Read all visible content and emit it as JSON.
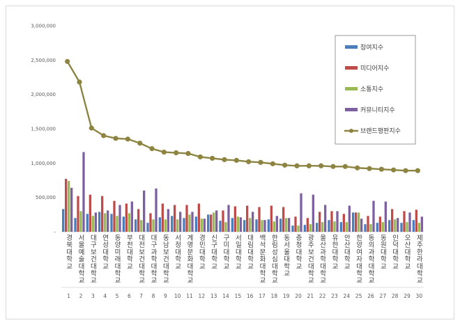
{
  "chart_data": {
    "type": "bar",
    "title": "",
    "xlabel": "",
    "ylabel": "",
    "ylim": [
      0,
      3000000
    ],
    "yticks": [
      "-",
      "500,000",
      "1,000,000",
      "1,500,000",
      "2,000,000",
      "2,500,000",
      "3,000,000"
    ],
    "grid": false,
    "legend_position": "top-right",
    "ranks": [
      "1",
      "2",
      "3",
      "4",
      "5",
      "6",
      "7",
      "8",
      "9",
      "10",
      "11",
      "12",
      "13",
      "14",
      "15",
      "16",
      "17",
      "18",
      "19",
      "20",
      "21",
      "22",
      "23",
      "24",
      "25",
      "26",
      "27",
      "28",
      "29",
      "30"
    ],
    "categories": [
      "경북대학교",
      "서울예술대학교",
      "대구보건대학교",
      "연성대학교",
      "동양미래대학교",
      "부천대학교",
      "대전보건대학교",
      "대구과학대학교",
      "동남보건대학교",
      "서정대학교",
      "계명문화대학교",
      "경민대학교",
      "신구대학교",
      "구미대학교",
      "서일대학교",
      "대림대학교",
      "백석문화대학교",
      "한림성심대학교",
      "동서울대학교",
      "충청대학교",
      "광주보건대학교",
      "울산과학대학교",
      "유한대학교",
      "안산대학교",
      "한양여자대학교",
      "동의과학대학교",
      "동원대학교",
      "인덕대학교",
      "오산대학교",
      "제주한라대학교"
    ],
    "series": [
      {
        "name": "참여지수",
        "color": "#4a7ebb",
        "values": [
          330000,
          200000,
          260000,
          290000,
          260000,
          220000,
          180000,
          130000,
          210000,
          230000,
          200000,
          220000,
          250000,
          160000,
          200000,
          170000,
          180000,
          180000,
          190000,
          90000,
          100000,
          130000,
          170000,
          140000,
          280000,
          110000,
          130000,
          170000,
          130000,
          170000
        ]
      },
      {
        "name": "미디어지수",
        "color": "#be4b48",
        "values": [
          770000,
          520000,
          540000,
          520000,
          450000,
          410000,
          330000,
          270000,
          410000,
          390000,
          390000,
          410000,
          250000,
          310000,
          370000,
          380000,
          360000,
          380000,
          360000,
          220000,
          200000,
          290000,
          300000,
          260000,
          280000,
          230000,
          220000,
          330000,
          300000,
          320000
        ]
      },
      {
        "name": "소통지수",
        "color": "#98b954",
        "values": [
          740000,
          300000,
          230000,
          270000,
          230000,
          270000,
          170000,
          180000,
          180000,
          180000,
          250000,
          190000,
          280000,
          140000,
          220000,
          200000,
          170000,
          150000,
          200000,
          90000,
          110000,
          140000,
          150000,
          140000,
          280000,
          110000,
          140000,
          180000,
          140000,
          130000
        ]
      },
      {
        "name": "커뮤니티지수",
        "color": "#7d60a0",
        "values": [
          640000,
          1160000,
          280000,
          310000,
          390000,
          440000,
          600000,
          630000,
          330000,
          290000,
          290000,
          190000,
          310000,
          390000,
          210000,
          290000,
          170000,
          230000,
          200000,
          560000,
          540000,
          390000,
          300000,
          380000,
          190000,
          450000,
          440000,
          200000,
          280000,
          220000
        ]
      },
      {
        "name": "브랜드평판지수",
        "color": "#8c8440",
        "type": "line",
        "values": [
          2480000,
          2180000,
          1510000,
          1400000,
          1360000,
          1350000,
          1290000,
          1210000,
          1160000,
          1150000,
          1140000,
          1090000,
          1070000,
          1050000,
          1040000,
          1020000,
          1010000,
          990000,
          970000,
          960000,
          960000,
          960000,
          950000,
          950000,
          930000,
          920000,
          910000,
          900000,
          890000,
          890000
        ]
      }
    ]
  }
}
